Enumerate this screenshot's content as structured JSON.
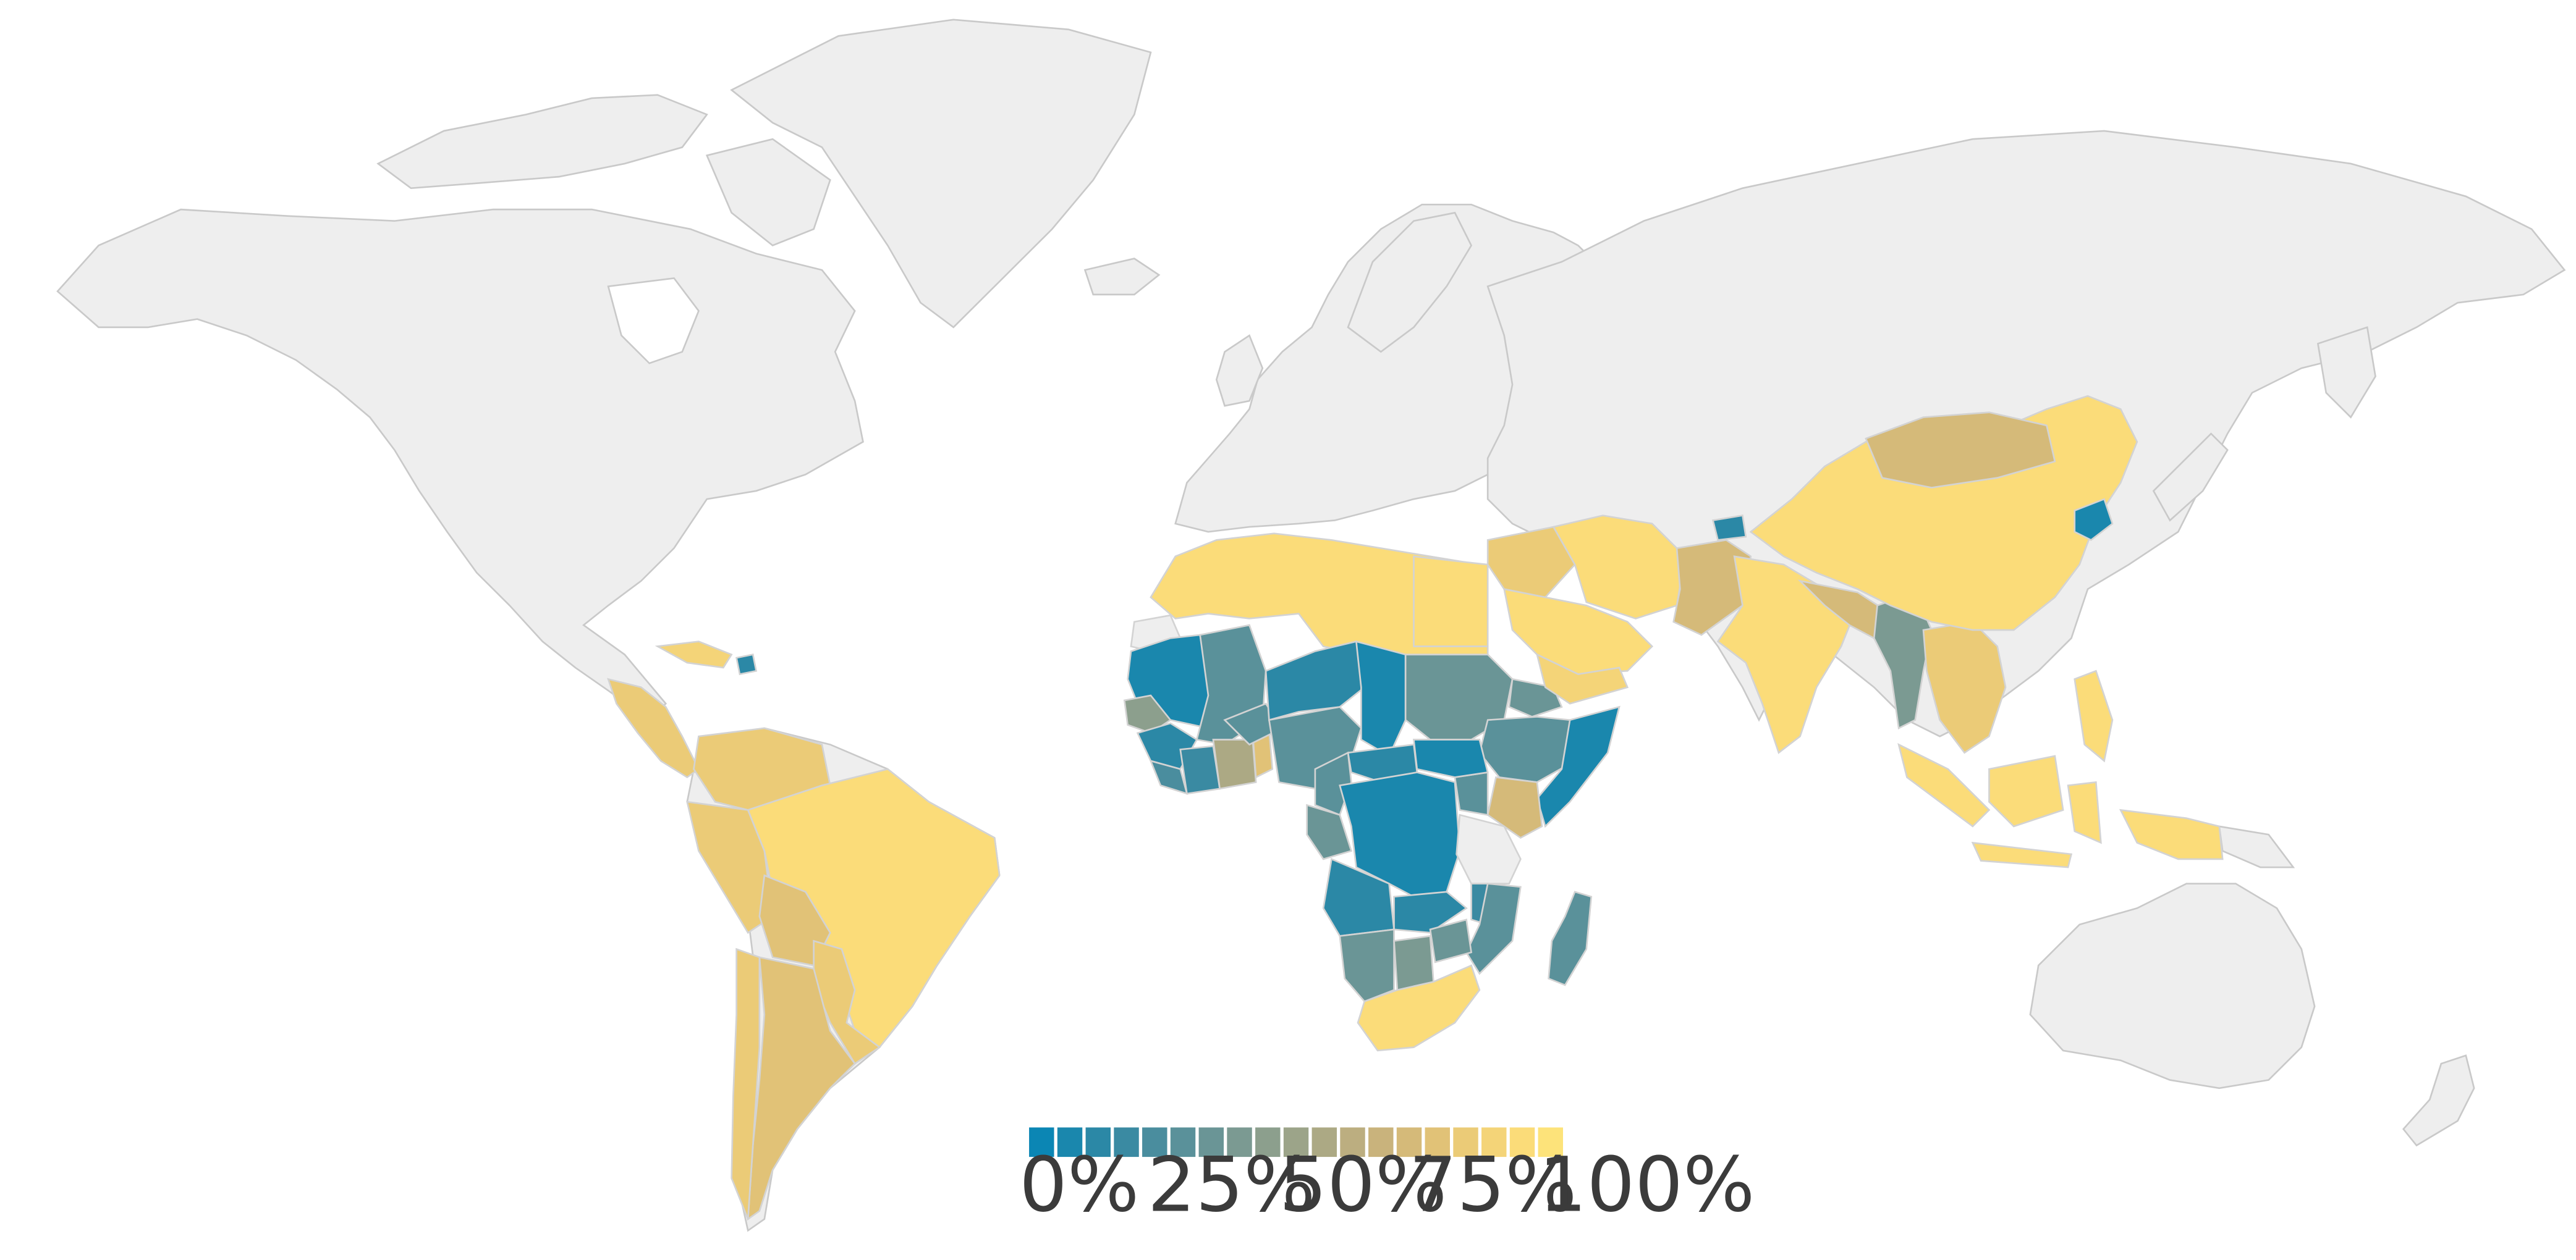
{
  "map": {
    "kind": "choropleth world map",
    "projection": "equirectangular-like",
    "colors": {
      "no_data": "#eeeeee",
      "no_data_border": "#c9c9c9",
      "country_border": "#d3d3d3",
      "scale_low": "#0b86b4",
      "scale_high": "#fde37a"
    },
    "legend": {
      "steps": [
        "#0b86b4",
        "#1a87ad",
        "#2b88a6",
        "#3a8aa2",
        "#4a8d9e",
        "#5a919a",
        "#6a9596",
        "#7b9a92",
        "#8c9f8d",
        "#9ca489",
        "#aca984",
        "#bcae80",
        "#c9b37c",
        "#d5ba79",
        "#e1c277",
        "#ebcb77",
        "#f4d478",
        "#fbdc79",
        "#fde37a"
      ],
      "labels": [
        "0%",
        "25%",
        "50%",
        "75%",
        "100%"
      ]
    },
    "regions": [
      {
        "name": "North Africa",
        "value": 95
      },
      {
        "name": "Western Sahara",
        "value": null
      },
      {
        "name": "Mauritania",
        "value": 5
      },
      {
        "name": "Mali",
        "value": 30
      },
      {
        "name": "Senegal and Gambia",
        "value": 45
      },
      {
        "name": "Guinea",
        "value": 10
      },
      {
        "name": "Sierra Leone and Liberia",
        "value": 20
      },
      {
        "name": "Cote d'Ivoire",
        "value": 15
      },
      {
        "name": "Ghana and Togo",
        "value": 55
      },
      {
        "name": "Benin",
        "value": 75
      },
      {
        "name": "Burkina Faso",
        "value": 30
      },
      {
        "name": "Niger",
        "value": 10
      },
      {
        "name": "Nigeria",
        "value": 25
      },
      {
        "name": "Chad",
        "value": 5
      },
      {
        "name": "Sudan",
        "value": 35
      },
      {
        "name": "Eritrea",
        "value": 35
      },
      {
        "name": "Ethiopia",
        "value": 30
      },
      {
        "name": "Somalia",
        "value": 5
      },
      {
        "name": "Kenya",
        "value": 70
      },
      {
        "name": "Uganda",
        "value": 30
      },
      {
        "name": "South Sudan",
        "value": 5
      },
      {
        "name": "Central African Republic",
        "value": 10
      },
      {
        "name": "Cameroon",
        "value": 25
      },
      {
        "name": "Gabon and Congo",
        "value": 35
      },
      {
        "name": "DR Congo",
        "value": 5
      },
      {
        "name": "Tanzania",
        "value": null
      },
      {
        "name": "Angola",
        "value": 10
      },
      {
        "name": "Zambia",
        "value": 10
      },
      {
        "name": "Malawi",
        "value": 15
      },
      {
        "name": "Mozambique",
        "value": 25
      },
      {
        "name": "Madagascar",
        "value": 25
      },
      {
        "name": "Namibia",
        "value": 35
      },
      {
        "name": "Botswana",
        "value": 40
      },
      {
        "name": "Zimbabwe",
        "value": 35
      },
      {
        "name": "South Africa",
        "value": 95
      },
      {
        "name": "Egypt",
        "value": 95
      },
      {
        "name": "Saudi Arabia and Gulf",
        "value": 95
      },
      {
        "name": "Yemen",
        "value": 90
      },
      {
        "name": "Iraq and Syria",
        "value": 85
      },
      {
        "name": "Iran",
        "value": 95
      },
      {
        "name": "Pakistan",
        "value": 70
      },
      {
        "name": "India",
        "value": 95
      },
      {
        "name": "Nepal and Bangladesh",
        "value": 70
      },
      {
        "name": "Myanmar",
        "value": 40
      },
      {
        "name": "Indochina",
        "value": 85
      },
      {
        "name": "China",
        "value": 95
      },
      {
        "name": "Mongolia",
        "value": 70
      },
      {
        "name": "North Korea",
        "value": 5
      },
      {
        "name": "Tajikistan",
        "value": 10
      },
      {
        "name": "Philippines",
        "value": 95
      },
      {
        "name": "Indonesia",
        "value": 95
      },
      {
        "name": "Papua New Guinea",
        "value": 95
      },
      {
        "name": "Mexico to Panama",
        "value": 85
      },
      {
        "name": "Cuba",
        "value": 90
      },
      {
        "name": "Haiti",
        "value": 10
      },
      {
        "name": "Colombia and Venezuela",
        "value": 85
      },
      {
        "name": "Peru and Ecuador",
        "value": 85
      },
      {
        "name": "Bolivia",
        "value": 75
      },
      {
        "name": "Brazil",
        "value": 95
      },
      {
        "name": "Paraguay and Uruguay",
        "value": 85
      },
      {
        "name": "Argentina",
        "value": 80
      },
      {
        "name": "Chile",
        "value": 85
      }
    ]
  }
}
